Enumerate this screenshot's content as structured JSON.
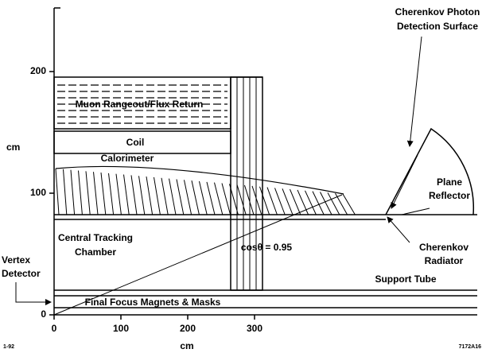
{
  "axes": {
    "x_label": "cm",
    "y_label": "cm",
    "xticks": [
      0,
      100,
      200,
      300
    ],
    "yticks": [
      0,
      100,
      200
    ]
  },
  "labels": {
    "muon": "Muon Rangeout/Flux Return",
    "coil": "Coil",
    "calorimeter": "Calorimeter",
    "tracking": [
      "Central Tracking",
      "Chamber"
    ],
    "cos": "cosθ = 0.95",
    "support": "Support Tube",
    "final_focus": "Final Focus Magnets & Masks",
    "vertex": [
      "Vertex",
      "Detector"
    ],
    "photon": [
      "Cherenkov Photon",
      "Detection Surface"
    ],
    "reflector": [
      "Plane",
      "Reflector"
    ],
    "radiator": [
      "Cherenkov",
      "Radiator"
    ]
  },
  "footer": {
    "left": "1-92",
    "right": "7172A16"
  }
}
